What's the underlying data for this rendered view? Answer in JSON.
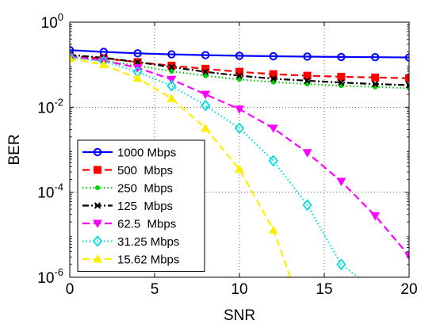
{
  "chart_data": {
    "type": "line",
    "xlabel": "SNR",
    "ylabel": "BER",
    "xlim": [
      0,
      20
    ],
    "ylim": [
      1e-06,
      1
    ],
    "yscale": "log",
    "grid": true,
    "legend_position": "bottom-left",
    "x_ticks": [
      "0",
      "5",
      "10",
      "15",
      "20"
    ],
    "y_ticks": [
      {
        "value": 1,
        "base": "10",
        "exp": "0"
      },
      {
        "value": 0.01,
        "base": "10",
        "exp": "-2"
      },
      {
        "value": 0.0001,
        "base": "10",
        "exp": "-4"
      },
      {
        "value": 1e-06,
        "base": "10",
        "exp": "-6"
      }
    ],
    "series": [
      {
        "name": "1000 Mbps",
        "color": "#0000ff",
        "dash": "solid",
        "marker": "circle",
        "x": [
          0,
          2,
          4,
          6,
          8,
          10,
          12,
          14,
          16,
          18,
          20
        ],
        "y": [
          0.22,
          0.2,
          0.185,
          0.175,
          0.168,
          0.162,
          0.158,
          0.155,
          0.152,
          0.15,
          0.148
        ]
      },
      {
        "name": "500  Mbps",
        "color": "#ff0000",
        "dash": "dashed",
        "marker": "square",
        "x": [
          0,
          2,
          4,
          6,
          8,
          10,
          12,
          14,
          16,
          18,
          20
        ],
        "y": [
          0.16,
          0.14,
          0.115,
          0.095,
          0.08,
          0.068,
          0.06,
          0.055,
          0.052,
          0.05,
          0.048
        ]
      },
      {
        "name": "250  Mbps",
        "color": "#00cc00",
        "dash": "dotted",
        "marker": "dot",
        "x": [
          0,
          2,
          4,
          6,
          8,
          10,
          12,
          14,
          16,
          18,
          20
        ],
        "y": [
          0.15,
          0.125,
          0.095,
          0.07,
          0.055,
          0.045,
          0.039,
          0.035,
          0.032,
          0.03,
          0.028
        ]
      },
      {
        "name": "125  Mbps",
        "color": "#000000",
        "dash": "dashdot",
        "marker": "x",
        "x": [
          0,
          2,
          4,
          6,
          8,
          10,
          12,
          14,
          16,
          18,
          20
        ],
        "y": [
          0.17,
          0.145,
          0.115,
          0.088,
          0.068,
          0.055,
          0.047,
          0.042,
          0.038,
          0.035,
          0.033
        ]
      },
      {
        "name": "62.5  Mbps",
        "color": "#ff00ff",
        "dash": "dashed",
        "marker": "triangle-down",
        "x": [
          0,
          2,
          4,
          6,
          8,
          10,
          12,
          14,
          16,
          18,
          20
        ],
        "y": [
          0.155,
          0.125,
          0.085,
          0.045,
          0.02,
          0.009,
          0.0032,
          0.00085,
          0.00018,
          2.8e-05,
          3.2e-06
        ]
      },
      {
        "name": "31.25 Mbps",
        "color": "#00dddd",
        "dash": "dotted",
        "marker": "diamond",
        "x": [
          0,
          2,
          4,
          6,
          8,
          10,
          12,
          14,
          16,
          17
        ],
        "y": [
          0.15,
          0.12,
          0.068,
          0.032,
          0.011,
          0.0032,
          0.00055,
          5e-05,
          2e-06,
          1e-06
        ]
      },
      {
        "name": "15.62 Mbps",
        "color": "#ffee00",
        "dash": "dashed",
        "marker": "triangle-up",
        "x": [
          0,
          2,
          4,
          6,
          8,
          10,
          12,
          13
        ],
        "y": [
          0.14,
          0.1,
          0.048,
          0.016,
          0.0032,
          0.00035,
          1.3e-05,
          1e-06
        ]
      }
    ]
  }
}
